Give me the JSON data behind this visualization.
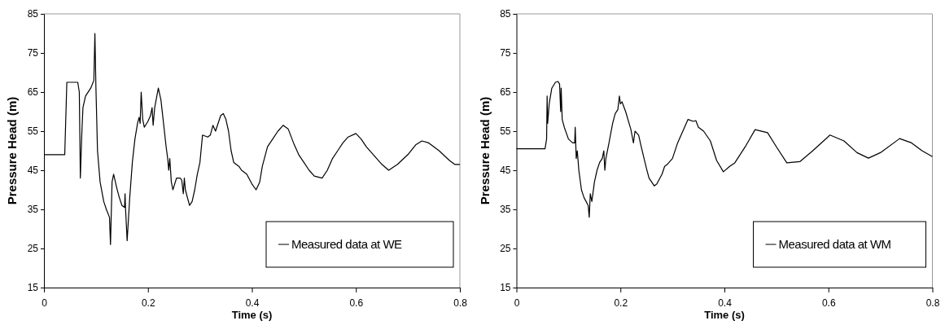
{
  "chart_data": [
    {
      "type": "line",
      "xlabel": "Time (s)",
      "ylabel": "Pressure Head (m)",
      "xlim": [
        0,
        0.8
      ],
      "xticks": [
        0,
        0.2,
        0.4,
        0.6,
        0.8
      ],
      "ylim": [
        15,
        85
      ],
      "yticks": [
        15,
        25,
        35,
        45,
        55,
        65,
        75,
        85
      ],
      "grid": false,
      "legend": "bottom right",
      "marker": "none",
      "line_style": "solid",
      "series": [
        {
          "name": "Measured data at WE",
          "color": "#000000",
          "x": [
            0,
            0.04,
            0.044,
            0.065,
            0.068,
            0.07,
            0.073,
            0.075,
            0.08,
            0.09,
            0.096,
            0.098,
            0.1,
            0.103,
            0.108,
            0.115,
            0.12,
            0.126,
            0.128,
            0.131,
            0.134,
            0.14,
            0.145,
            0.15,
            0.155,
            0.156,
            0.157,
            0.16,
            0.165,
            0.17,
            0.175,
            0.18,
            0.183,
            0.185,
            0.187,
            0.19,
            0.193,
            0.2,
            0.205,
            0.208,
            0.21,
            0.213,
            0.22,
            0.225,
            0.23,
            0.235,
            0.238,
            0.24,
            0.242,
            0.245,
            0.248,
            0.255,
            0.262,
            0.265,
            0.268,
            0.27,
            0.272,
            0.28,
            0.285,
            0.29,
            0.295,
            0.3,
            0.305,
            0.315,
            0.32,
            0.325,
            0.33,
            0.34,
            0.345,
            0.35,
            0.355,
            0.36,
            0.365,
            0.375,
            0.38,
            0.39,
            0.4,
            0.408,
            0.415,
            0.42,
            0.43,
            0.44,
            0.45,
            0.46,
            0.47,
            0.48,
            0.49,
            0.5,
            0.51,
            0.52,
            0.535,
            0.545,
            0.555,
            0.565,
            0.575,
            0.585,
            0.6,
            0.61,
            0.62,
            0.63,
            0.64,
            0.65,
            0.663,
            0.68,
            0.7,
            0.715,
            0.727,
            0.74,
            0.76,
            0.78,
            0.79,
            0.8
          ],
          "values": [
            49,
            49,
            67.5,
            67.5,
            65,
            43,
            55,
            61,
            64,
            66,
            68,
            80,
            66,
            50,
            42,
            37,
            35,
            33,
            26,
            42,
            44,
            40.5,
            38,
            36,
            35.5,
            39,
            35,
            27,
            38,
            47,
            53,
            57,
            58.5,
            57,
            65,
            58,
            56,
            57.5,
            59,
            61,
            56.5,
            61,
            66,
            63,
            57,
            51,
            48,
            45,
            48,
            42,
            40,
            43,
            43,
            42.5,
            39,
            43,
            40,
            36,
            37,
            40,
            44,
            47,
            54,
            53.5,
            54,
            56.5,
            55,
            59,
            59.5,
            58,
            55,
            50,
            47,
            46,
            45,
            44,
            41.5,
            40,
            42,
            46,
            51,
            53,
            55,
            56.5,
            55.5,
            52,
            49,
            47,
            45,
            43.5,
            43,
            45,
            48,
            50,
            52,
            53.5,
            54.4,
            53,
            51,
            49.5,
            48,
            46.5,
            45,
            46.5,
            49,
            51.5,
            52.5,
            52,
            50,
            47.5,
            46.5,
            46.5
          ]
        }
      ]
    },
    {
      "type": "line",
      "xlabel": "Time (s)",
      "ylabel": "Pressure Head (m)",
      "xlim": [
        0,
        0.8
      ],
      "xticks": [
        0,
        0.2,
        0.4,
        0.6,
        0.8
      ],
      "ylim": [
        15,
        85
      ],
      "yticks": [
        15,
        25,
        35,
        45,
        55,
        65,
        75,
        85
      ],
      "grid": false,
      "legend": "bottom right",
      "marker": "none",
      "line_style": "solid",
      "series": [
        {
          "name": "Measured data at WM",
          "color": "#000000",
          "x": [
            0,
            0.055,
            0.058,
            0.059,
            0.06,
            0.063,
            0.068,
            0.075,
            0.08,
            0.083,
            0.085,
            0.086,
            0.088,
            0.092,
            0.1,
            0.108,
            0.112,
            0.113,
            0.115,
            0.117,
            0.12,
            0.125,
            0.13,
            0.138,
            0.14,
            0.142,
            0.145,
            0.15,
            0.155,
            0.16,
            0.165,
            0.168,
            0.17,
            0.172,
            0.178,
            0.185,
            0.19,
            0.195,
            0.198,
            0.2,
            0.203,
            0.21,
            0.22,
            0.225,
            0.228,
            0.235,
            0.24,
            0.25,
            0.255,
            0.265,
            0.27,
            0.28,
            0.285,
            0.29,
            0.3,
            0.31,
            0.32,
            0.33,
            0.34,
            0.345,
            0.35,
            0.36,
            0.373,
            0.385,
            0.398,
            0.41,
            0.42,
            0.44,
            0.459,
            0.483,
            0.5,
            0.52,
            0.545,
            0.57,
            0.603,
            0.63,
            0.655,
            0.677,
            0.7,
            0.737,
            0.76,
            0.78,
            0.8
          ],
          "values": [
            50.5,
            50.5,
            53,
            64,
            57,
            62,
            66,
            67.5,
            67.7,
            67,
            60,
            66,
            58,
            56,
            53,
            52,
            52,
            56,
            48,
            50,
            45,
            40,
            38,
            36,
            33,
            39,
            37,
            42,
            45,
            47,
            48,
            50,
            45,
            48,
            52,
            57,
            59.5,
            60.5,
            64,
            62,
            62.5,
            60,
            55.5,
            52,
            55,
            54,
            51,
            45.5,
            43,
            41,
            41.5,
            44,
            46,
            46.5,
            48,
            52,
            55,
            58,
            57.5,
            57.7,
            56,
            55,
            52.5,
            47.5,
            44.6,
            46,
            46.9,
            51,
            55.4,
            54.6,
            51,
            46.9,
            47.2,
            50,
            54,
            52.5,
            49.5,
            48.1,
            49.5,
            53.1,
            52,
            50,
            48.5
          ]
        }
      ]
    }
  ]
}
